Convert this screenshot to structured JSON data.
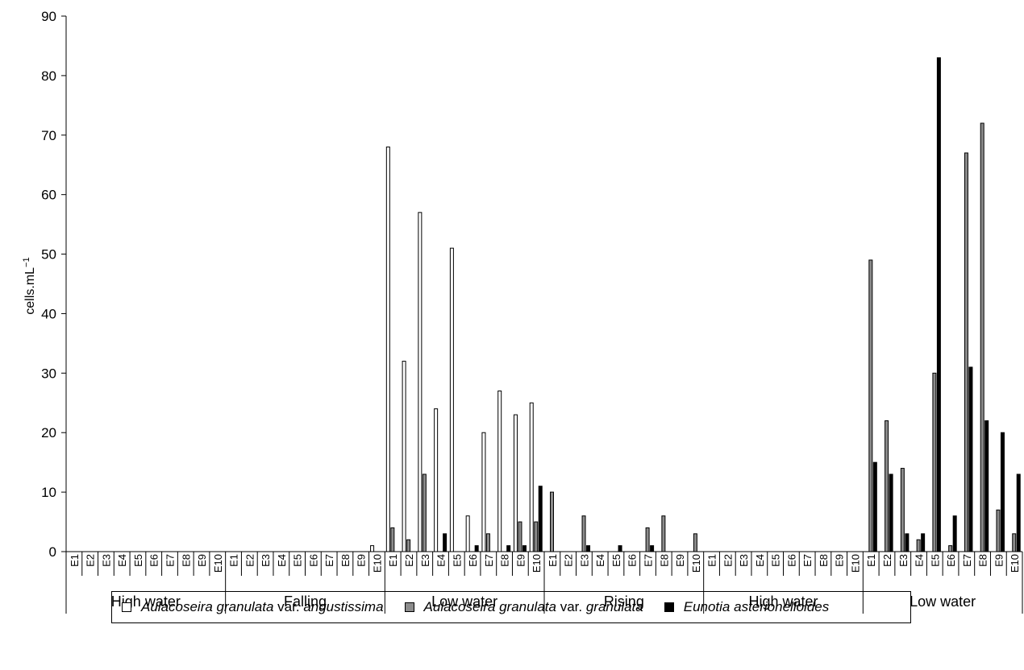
{
  "chart_data": {
    "type": "bar",
    "ylabel": "cells.mL",
    "ylabel_sup": "−1",
    "ylim": [
      0,
      90
    ],
    "yticks": [
      "0",
      "10",
      "20",
      "30",
      "40",
      "50",
      "60",
      "70",
      "80",
      "90"
    ],
    "sites": [
      "E1",
      "E2",
      "E3",
      "E4",
      "E5",
      "E6",
      "E7",
      "E8",
      "E9",
      "E10"
    ],
    "groups": [
      "High water",
      "Falling",
      "Low water",
      "Rising",
      "High water",
      "Low water"
    ],
    "series": [
      {
        "name": "Aulacoseira granulata var. angustissima",
        "color": "#ffffff",
        "values": [
          [
            0,
            0,
            0,
            0,
            0,
            0,
            0,
            0,
            0,
            0
          ],
          [
            0,
            0,
            0,
            0,
            0,
            0,
            0,
            0,
            0,
            1
          ],
          [
            68,
            32,
            57,
            24,
            51,
            6,
            20,
            27,
            23,
            25
          ],
          [
            0,
            0,
            0,
            0,
            0,
            0,
            0,
            0,
            0,
            0
          ],
          [
            0,
            0,
            0,
            0,
            0,
            0,
            0,
            0,
            0,
            0
          ],
          [
            0,
            0,
            0,
            0,
            0,
            0,
            0,
            0,
            0,
            0
          ]
        ]
      },
      {
        "name": "Aulacoseira granulata var. granulata",
        "color": "#8c8c8c",
        "values": [
          [
            0,
            0,
            0,
            0,
            0,
            0,
            0,
            0,
            0,
            0
          ],
          [
            0,
            0,
            0,
            0,
            0,
            0,
            0,
            0,
            0,
            0
          ],
          [
            4,
            2,
            13,
            0,
            0,
            0,
            3,
            0,
            5,
            5
          ],
          [
            10,
            0,
            6,
            0,
            0,
            0,
            4,
            6,
            0,
            3
          ],
          [
            0,
            0,
            0,
            0,
            0,
            0,
            0,
            0,
            0,
            0
          ],
          [
            49,
            22,
            14,
            2,
            30,
            1,
            67,
            72,
            7,
            3
          ]
        ]
      },
      {
        "name": "Eunotia asterionelloides",
        "color": "#000000",
        "values": [
          [
            0,
            0,
            0,
            0,
            0,
            0,
            0,
            0,
            0,
            0
          ],
          [
            0,
            0,
            0,
            0,
            0,
            0,
            0,
            0,
            0,
            0
          ],
          [
            0,
            0,
            0,
            3,
            0,
            1,
            0,
            1,
            1,
            11
          ],
          [
            0,
            0,
            1,
            0,
            1,
            0,
            1,
            0,
            0,
            0
          ],
          [
            0,
            0,
            0,
            0,
            0,
            0,
            0,
            0,
            0,
            0
          ],
          [
            15,
            13,
            3,
            3,
            83,
            6,
            31,
            22,
            20,
            13
          ]
        ]
      }
    ],
    "legend": [
      {
        "parts": [
          {
            "t": "Aulacoseira granulata",
            "i": true
          },
          {
            "t": " var. ",
            "i": false
          },
          {
            "t": "angustissima",
            "i": true
          }
        ],
        "color": "#ffffff"
      },
      {
        "parts": [
          {
            "t": "Aulacoseira granulata",
            "i": true
          },
          {
            "t": " var. ",
            "i": false
          },
          {
            "t": "granulata",
            "i": true
          }
        ],
        "color": "#8c8c8c"
      },
      {
        "parts": [
          {
            "t": "Eunotia asterionelloides",
            "i": true
          }
        ],
        "color": "#000000"
      }
    ],
    "legend_position": "bottom",
    "grid": false
  }
}
